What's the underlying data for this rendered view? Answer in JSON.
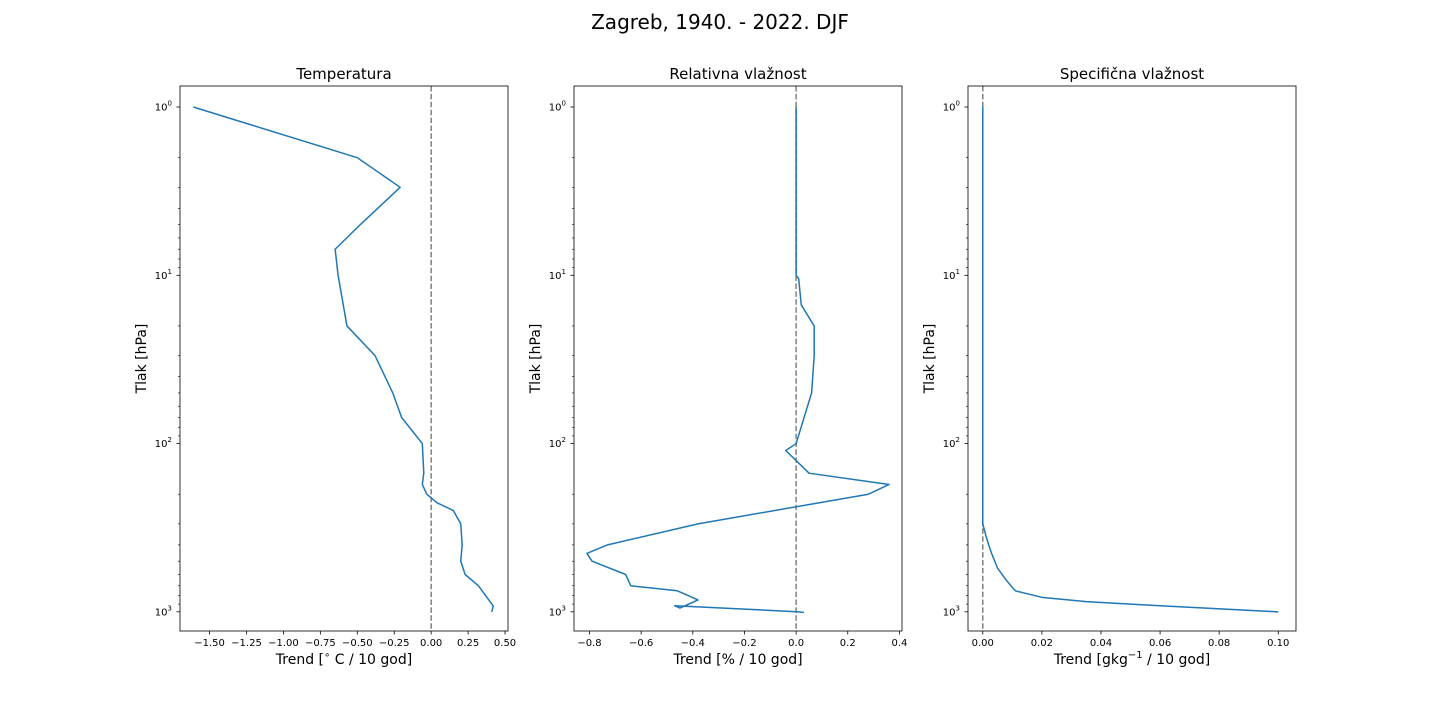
{
  "figure": {
    "title": "Zagreb, 1940. - 2022. DJF"
  },
  "chart_data": [
    {
      "type": "line",
      "title": "Temperatura",
      "xlabel": "Trend [$^{\\circ}$ C / 10 god]",
      "xlabel_parts": [
        "Trend [",
        "∘",
        " C / 10 god]"
      ],
      "ylabel": "Tlak [hPa]",
      "yscale": "log",
      "yinverted": true,
      "xlim": [
        -1.7,
        0.52
      ],
      "ylim": [
        1300,
        0.75
      ],
      "xticks": [
        -1.5,
        -1.25,
        -1.0,
        -0.75,
        -0.5,
        -0.25,
        0.0,
        0.25,
        0.5
      ],
      "xtick_labels": [
        "−1.50",
        "−1.25",
        "−1.00",
        "−0.75",
        "−0.50",
        "−0.25",
        "0.00",
        "0.25",
        "0.50"
      ],
      "yticks": [
        1,
        10,
        100,
        1000
      ],
      "ytick_labels": [
        {
          "base": "10",
          "exp": "0"
        },
        {
          "base": "10",
          "exp": "1"
        },
        {
          "base": "10",
          "exp": "2"
        },
        {
          "base": "10",
          "exp": "3"
        }
      ],
      "zero_line": 0,
      "series_color": "#1f77b4",
      "zero_line_color": "#808080",
      "x": [
        -1.61,
        -0.5,
        -0.21,
        -0.48,
        -0.65,
        -0.63,
        -0.57,
        -0.38,
        -0.26,
        -0.2,
        -0.06,
        -0.05,
        -0.06,
        -0.03,
        0.04,
        0.15,
        0.2,
        0.21,
        0.2,
        0.23,
        0.32,
        0.39,
        0.42,
        0.41
      ],
      "y": [
        1,
        2,
        3,
        5,
        7,
        10,
        20,
        30,
        50,
        70,
        100,
        150,
        175,
        200,
        225,
        250,
        300,
        400,
        500,
        600,
        700,
        850,
        925,
        1000
      ]
    },
    {
      "type": "line",
      "title": "Relativna vlažnost",
      "xlabel": "Trend [% / 10 god]",
      "ylabel": "Tlak [hPa]",
      "yscale": "log",
      "yinverted": true,
      "xlim": [
        -0.86,
        0.41
      ],
      "ylim": [
        1300,
        0.75
      ],
      "xticks": [
        -0.8,
        -0.6,
        -0.4,
        -0.2,
        0.0,
        0.2,
        0.4
      ],
      "xtick_labels": [
        "−0.8",
        "−0.6",
        "−0.4",
        "−0.2",
        "0.0",
        "0.2",
        "0.4"
      ],
      "yticks": [
        1,
        10,
        100,
        1000
      ],
      "ytick_labels": [
        {
          "base": "10",
          "exp": "0"
        },
        {
          "base": "10",
          "exp": "1"
        },
        {
          "base": "10",
          "exp": "2"
        },
        {
          "base": "10",
          "exp": "3"
        }
      ],
      "zero_line": 0,
      "series_color": "#1f77b4",
      "zero_line_color": "#808080",
      "x": [
        0.0,
        0.0,
        0.0,
        0.0,
        0.0,
        0.0,
        0.01,
        0.02,
        0.07,
        0.07,
        0.06,
        0.0,
        -0.04,
        0.05,
        0.36,
        0.28,
        -0.38,
        -0.73,
        -0.81,
        -0.79,
        -0.66,
        -0.64,
        -0.46,
        -0.38,
        -0.45,
        -0.47,
        -0.28,
        0.01,
        0.03
      ],
      "y": [
        1,
        2,
        3,
        5,
        7,
        10,
        10.5,
        15,
        20,
        30,
        50,
        100,
        110,
        150,
        175,
        200,
        300,
        400,
        450,
        500,
        600,
        700,
        750,
        850,
        950,
        920,
        950,
        1000,
        1010
      ]
    },
    {
      "type": "line",
      "title": "Specifična vlažnost",
      "xlabel": "Trend [gkg$^{-1}$ / 10 god]",
      "xlabel_parts": [
        "Trend [gkg",
        "−1",
        " / 10 god]"
      ],
      "ylabel": "Tlak [hPa]",
      "yscale": "log",
      "yinverted": true,
      "xlim": [
        -0.005,
        0.106
      ],
      "ylim": [
        1300,
        0.75
      ],
      "xticks": [
        0.0,
        0.02,
        0.04,
        0.06,
        0.08,
        0.1
      ],
      "xtick_labels": [
        "0.00",
        "0.02",
        "0.04",
        "0.06",
        "0.08",
        "0.10"
      ],
      "yticks": [
        1,
        10,
        100,
        1000
      ],
      "ytick_labels": [
        {
          "base": "10",
          "exp": "0"
        },
        {
          "base": "10",
          "exp": "1"
        },
        {
          "base": "10",
          "exp": "2"
        },
        {
          "base": "10",
          "exp": "3"
        }
      ],
      "zero_line": 0,
      "series_color": "#1f77b4",
      "zero_line_color": "#808080",
      "x": [
        0.0,
        0.0,
        0.0,
        0.0,
        0.0,
        0.0,
        0.0,
        0.0,
        0.0,
        0.0,
        0.0,
        0.0,
        0.0,
        0.0,
        0.0,
        0.0,
        0.001,
        0.002,
        0.003,
        0.005,
        0.008,
        0.011,
        0.02,
        0.035,
        0.06,
        0.1
      ],
      "y": [
        1,
        2,
        3,
        5,
        7,
        10,
        20,
        30,
        50,
        70,
        100,
        150,
        200,
        250,
        280,
        300,
        350,
        400,
        450,
        550,
        650,
        750,
        820,
        870,
        920,
        1000
      ]
    }
  ]
}
